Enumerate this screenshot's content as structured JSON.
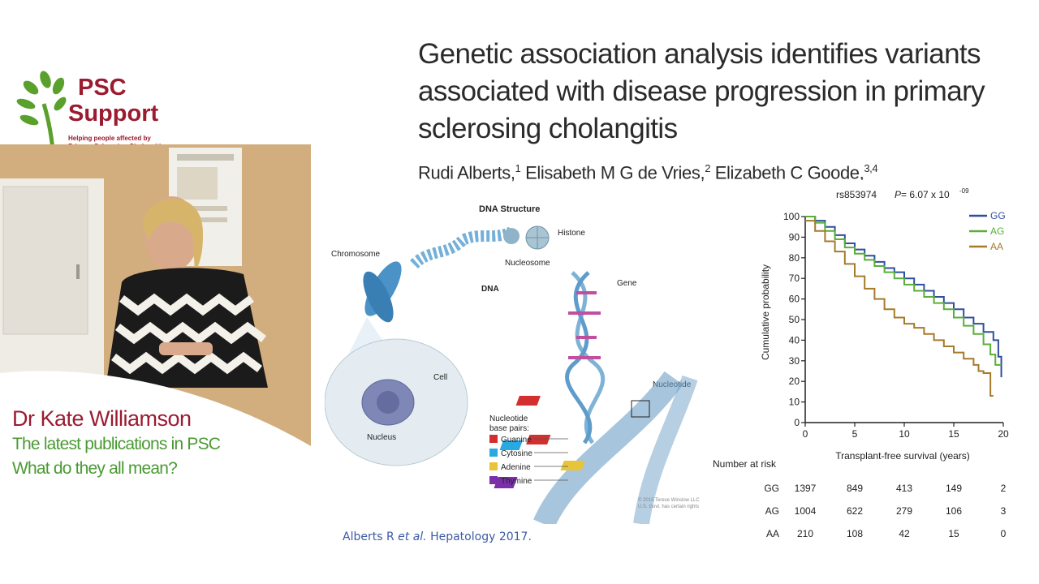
{
  "logo": {
    "line1": "PSC",
    "line2": "Support",
    "tagline1": "Helping people affected by",
    "tagline2": "Primary Sclerosing Cholangitis",
    "colors": {
      "brand": "#9b1b30",
      "leaf": "#5aa02c"
    }
  },
  "speaker": {
    "name": "Dr Kate Williamson",
    "talk_line1": "The latest publications in PSC",
    "talk_line2": "What do they all mean?"
  },
  "slide": {
    "title": "Genetic association analysis identifies variants associated with disease progression in primary sclerosing cholangitis",
    "authors": [
      {
        "name": "Rudi Alberts,",
        "sup": "1"
      },
      {
        "name": "Elisabeth M G de Vries,",
        "sup": "2"
      },
      {
        "name": "Elizabeth C Goode,",
        "sup": "3,4"
      }
    ],
    "citation_authors": "Alberts R ",
    "citation_etal": "et al.",
    "citation_journal": " Hepatology 2017."
  },
  "dna_figure": {
    "title": "DNA Structure",
    "labels": {
      "chromosome": "Chromosome",
      "histone": "Histone",
      "nucleosome": "Nucleosome",
      "dna": "DNA",
      "gene": "Gene",
      "cell": "Cell",
      "nucleus": "Nucleus",
      "nucleotide": "Nucleotide"
    },
    "base_pairs_title1": "Nucleotide",
    "base_pairs_title2": "base pairs:",
    "bases": [
      {
        "name": "Guanine",
        "color": "#d32f2f"
      },
      {
        "name": "Cytosine",
        "color": "#29a9e0"
      },
      {
        "name": "Adenine",
        "color": "#e8c43a"
      },
      {
        "name": "Thymine",
        "color": "#7b2fa8"
      }
    ],
    "copyright1": "© 2015 Terese Winslow LLC",
    "copyright2": "U.S. Govt. has certain rights"
  },
  "chart_data": {
    "type": "line",
    "title": "rs853974",
    "p_label": "P",
    "p_value": " = 6.07 x 10",
    "p_exp": "-09",
    "xlabel": "Transplant-free survival (years)",
    "ylabel": "Cumulative probability",
    "xlim": [
      0,
      20
    ],
    "ylim": [
      0,
      100
    ],
    "x_ticks": [
      "0",
      "5",
      "10",
      "15",
      "20"
    ],
    "y_ticks": [
      "0",
      "10",
      "20",
      "30",
      "40",
      "50",
      "60",
      "70",
      "80",
      "90",
      "100"
    ],
    "legend_position": "top-right",
    "series": [
      {
        "name": "GG",
        "color": "#2f4f9c",
        "points": [
          [
            0,
            100
          ],
          [
            1,
            98
          ],
          [
            2,
            95
          ],
          [
            3,
            91
          ],
          [
            4,
            87
          ],
          [
            5,
            84
          ],
          [
            6,
            81
          ],
          [
            7,
            78
          ],
          [
            8,
            75
          ],
          [
            9,
            73
          ],
          [
            10,
            70
          ],
          [
            11,
            67
          ],
          [
            12,
            64
          ],
          [
            13,
            61
          ],
          [
            14,
            58
          ],
          [
            15,
            55
          ],
          [
            16,
            51
          ],
          [
            17,
            48
          ],
          [
            18,
            44
          ],
          [
            19,
            40
          ],
          [
            19.5,
            32
          ],
          [
            19.8,
            22
          ]
        ]
      },
      {
        "name": "AG",
        "color": "#5aae3a",
        "points": [
          [
            0,
            100
          ],
          [
            1,
            97
          ],
          [
            2,
            93
          ],
          [
            3,
            89
          ],
          [
            4,
            85
          ],
          [
            5,
            82
          ],
          [
            6,
            79
          ],
          [
            7,
            76
          ],
          [
            8,
            73
          ],
          [
            9,
            70
          ],
          [
            10,
            67
          ],
          [
            11,
            64
          ],
          [
            12,
            61
          ],
          [
            13,
            58
          ],
          [
            14,
            55
          ],
          [
            15,
            51
          ],
          [
            16,
            47
          ],
          [
            17,
            43
          ],
          [
            18,
            38
          ],
          [
            18.7,
            33
          ],
          [
            19.2,
            28
          ],
          [
            19.8,
            28
          ]
        ]
      },
      {
        "name": "AA",
        "color": "#a57a2a",
        "points": [
          [
            0,
            98
          ],
          [
            1,
            93
          ],
          [
            2,
            88
          ],
          [
            3,
            83
          ],
          [
            4,
            77
          ],
          [
            5,
            71
          ],
          [
            6,
            65
          ],
          [
            7,
            60
          ],
          [
            8,
            55
          ],
          [
            9,
            51
          ],
          [
            10,
            48
          ],
          [
            11,
            46
          ],
          [
            12,
            43
          ],
          [
            13,
            40
          ],
          [
            14,
            37
          ],
          [
            15,
            34
          ],
          [
            16,
            31
          ],
          [
            17,
            28
          ],
          [
            17.5,
            25
          ],
          [
            18,
            24
          ],
          [
            18.5,
            24
          ],
          [
            18.7,
            13
          ],
          [
            19,
            13
          ]
        ]
      }
    ],
    "risk_table": {
      "title": "Number at risk",
      "rows": [
        {
          "label": "GG",
          "values": [
            "1397",
            "849",
            "413",
            "149",
            "2"
          ]
        },
        {
          "label": "AG",
          "values": [
            "1004",
            "622",
            "279",
            "106",
            "3"
          ]
        },
        {
          "label": "AA",
          "values": [
            "210",
            "108",
            "42",
            "15",
            "0"
          ]
        }
      ]
    }
  }
}
